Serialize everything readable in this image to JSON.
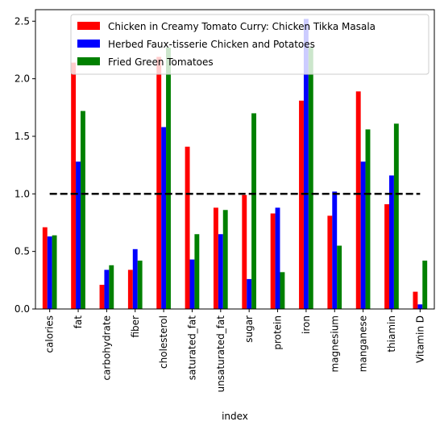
{
  "chart_data": {
    "type": "bar",
    "xlabel": "index",
    "ylabel": "",
    "ylim": [
      0,
      2.6
    ],
    "yticks": [
      "0.0",
      "0.5",
      "1.0",
      "1.5",
      "2.0",
      "2.5"
    ],
    "categories": [
      "calories",
      "fat",
      "carbohydrate",
      "fiber",
      "cholesterol",
      "saturated_fat",
      "unsaturated_fat",
      "sugar",
      "protein",
      "iron",
      "magnesium",
      "manganese",
      "thiamin",
      "Vitamin D"
    ],
    "series": [
      {
        "name": "Chicken in Creamy Tomato Curry: Chicken Tikka Masala",
        "color": "#ff0000",
        "values": [
          0.71,
          2.14,
          0.21,
          0.34,
          2.19,
          1.41,
          0.88,
          0.99,
          0.83,
          1.81,
          0.81,
          1.89,
          0.91,
          0.15
        ]
      },
      {
        "name": "Herbed Faux-tisserie Chicken and Potatoes",
        "color": "#0000ff",
        "values": [
          0.63,
          1.28,
          0.34,
          0.52,
          1.58,
          0.43,
          0.65,
          0.26,
          0.88,
          2.52,
          1.02,
          1.28,
          1.16,
          0.04
        ]
      },
      {
        "name": "Fried Green Tomatoes",
        "color": "#008000",
        "values": [
          0.64,
          1.72,
          0.38,
          0.42,
          2.27,
          0.65,
          0.86,
          1.7,
          0.32,
          2.27,
          0.55,
          1.56,
          1.61,
          0.42
        ]
      }
    ],
    "reference_line": {
      "value": 1.0,
      "style": "dashed",
      "color": "#000000"
    },
    "legend_position": "top-right",
    "grid": false
  }
}
